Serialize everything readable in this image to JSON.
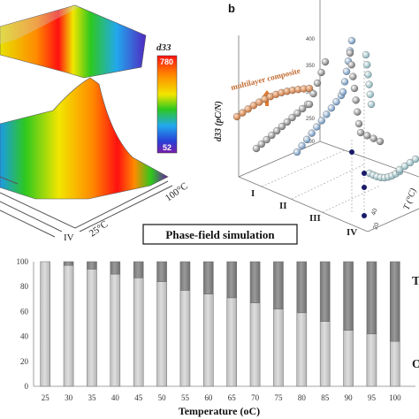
{
  "panel_b": {
    "letter": "b",
    "zlabel": "d33 (pC/N)",
    "composite_label": "multilayer composite",
    "z_ticks": [
      "400",
      "350",
      "300",
      "250",
      "200"
    ],
    "x_ticks": [
      "I",
      "II",
      "III",
      "IV"
    ],
    "t_label": "T (°C)",
    "t_ticks": [
      "40",
      "20"
    ]
  },
  "panel_a": {
    "colorbar_title": "d33",
    "colorbar_max": "780",
    "colorbar_min": "52",
    "temp_low": "25°C",
    "temp_high": "100°C",
    "roman_label": "IV"
  },
  "banner": {
    "label": "Phase-field simulation"
  },
  "chart_data": {
    "type": "bar",
    "stacked": true,
    "categories": [
      "25",
      "30",
      "35",
      "40",
      "45",
      "50",
      "55",
      "60",
      "65",
      "70",
      "75",
      "80",
      "85",
      "90",
      "95",
      "100"
    ],
    "series": [
      {
        "name": "O",
        "color": "#c8c8c8",
        "values": [
          100,
          97,
          94,
          90,
          87,
          84,
          77,
          74,
          71,
          67,
          62,
          59,
          52,
          45,
          42,
          36
        ]
      },
      {
        "name": "T",
        "color": "#808080",
        "values": [
          0,
          3,
          6,
          10,
          13,
          16,
          23,
          26,
          29,
          33,
          38,
          41,
          48,
          55,
          58,
          64
        ]
      }
    ],
    "xlabel": "Temperature (oC)",
    "ylabel": "",
    "ylim": [
      0,
      100
    ],
    "yticks": [
      "0",
      "20",
      "40",
      "60",
      "80",
      "100"
    ],
    "grid": false,
    "legend": "right"
  }
}
